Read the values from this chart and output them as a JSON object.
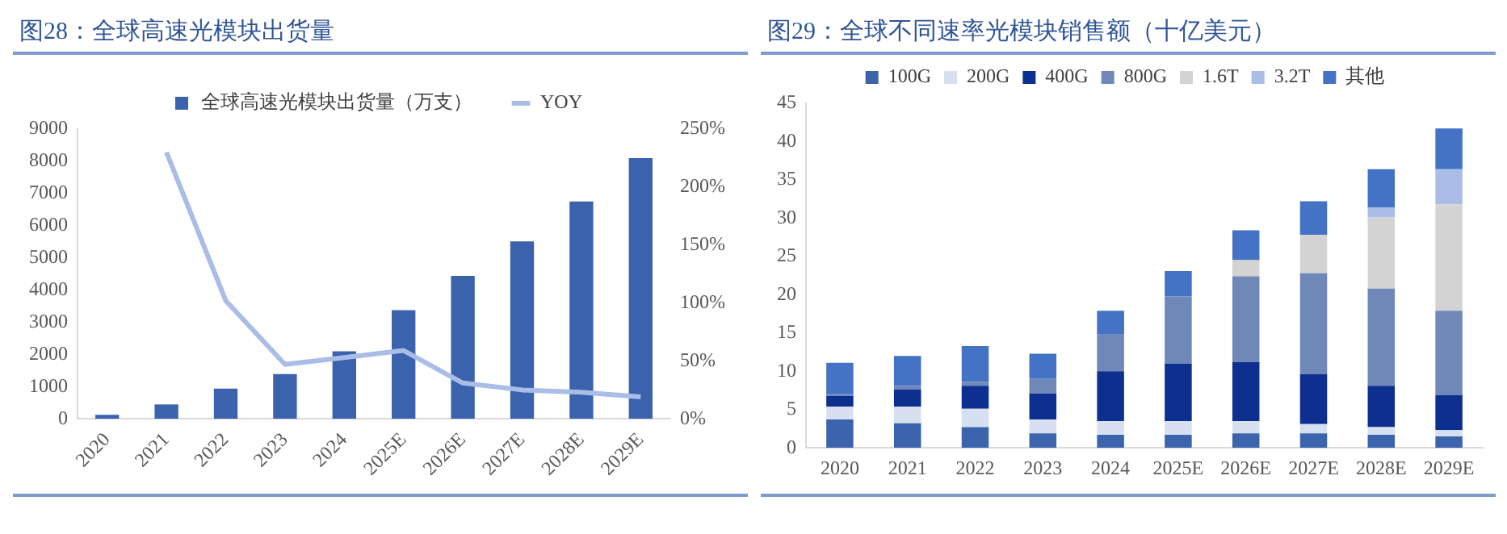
{
  "chart_data": [
    {
      "type": "bar",
      "title": "图28：全球高速光模块出货量",
      "categories": [
        "2020",
        "2021",
        "2022",
        "2023",
        "2024",
        "2025E",
        "2026E",
        "2027E",
        "2028E",
        "2029E"
      ],
      "series": [
        {
          "name": "全球高速光模块出货量（万支）",
          "color": "#3a62ad",
          "values": [
            130,
            450,
            940,
            1390,
            2100,
            3380,
            4440,
            5510,
            6750,
            8100
          ]
        },
        {
          "name": "YOY",
          "type": "line",
          "axis": "y2",
          "color": "#a9bde6",
          "values": [
            null,
            230,
            102,
            47,
            53,
            59,
            31,
            25,
            23,
            19
          ]
        }
      ],
      "ylim": [
        0,
        9000
      ],
      "yticks": [
        0,
        1000,
        2000,
        3000,
        4000,
        5000,
        6000,
        7000,
        8000,
        9000
      ],
      "y2lim": [
        0,
        250
      ],
      "y2ticks": [
        {
          "value": 0,
          "label": "0%"
        },
        {
          "value": 50,
          "label": "50%"
        },
        {
          "value": 100,
          "label": "100%"
        },
        {
          "value": 150,
          "label": "150%"
        },
        {
          "value": 200,
          "label": "200%"
        },
        {
          "value": 250,
          "label": "250%"
        }
      ],
      "grid": false,
      "legend": "top",
      "marker": "none",
      "line_style": "solid"
    },
    {
      "type": "bar",
      "title": "图29：全球不同速率光模块销售额（十亿美元）",
      "categories": [
        "2020",
        "2021",
        "2022",
        "2023",
        "2024",
        "2025E",
        "2026E",
        "2027E",
        "2028E",
        "2029E"
      ],
      "stacked": true,
      "series": [
        {
          "name": "100G",
          "color": "#3b64ad",
          "values": [
            3.7,
            3.2,
            2.7,
            1.9,
            1.7,
            1.7,
            1.9,
            1.9,
            1.7,
            1.5
          ]
        },
        {
          "name": "200G",
          "color": "#d6e0f0",
          "values": [
            1.7,
            2.2,
            2.4,
            1.8,
            1.8,
            1.8,
            1.6,
            1.2,
            1.0,
            0.8
          ]
        },
        {
          "name": "400G",
          "color": "#0d2f8f",
          "values": [
            1.4,
            2.2,
            3.0,
            3.4,
            6.5,
            7.5,
            7.7,
            6.5,
            5.4,
            4.6
          ]
        },
        {
          "name": "800G",
          "color": "#6f88b8",
          "values": [
            0.2,
            0.5,
            0.5,
            1.9,
            4.8,
            8.8,
            11.2,
            13.2,
            12.7,
            11.0
          ]
        },
        {
          "name": "1.6T",
          "color": "#d3d3d3",
          "values": [
            0,
            0,
            0,
            0,
            0,
            0,
            2.1,
            5.0,
            9.3,
            13.9
          ]
        },
        {
          "name": "3.2T",
          "color": "#a9bde6",
          "values": [
            0,
            0,
            0,
            0,
            0,
            0,
            0,
            0,
            1.3,
            4.6
          ]
        },
        {
          "name": "其他",
          "color": "#4472c4",
          "values": [
            4.1,
            3.9,
            4.7,
            3.3,
            3.1,
            3.3,
            3.9,
            4.4,
            5.0,
            5.3
          ]
        }
      ],
      "ylim": [
        0,
        45
      ],
      "yticks": [
        0,
        5,
        10,
        15,
        20,
        25,
        30,
        35,
        40,
        45
      ],
      "grid": false,
      "legend": "top"
    }
  ]
}
